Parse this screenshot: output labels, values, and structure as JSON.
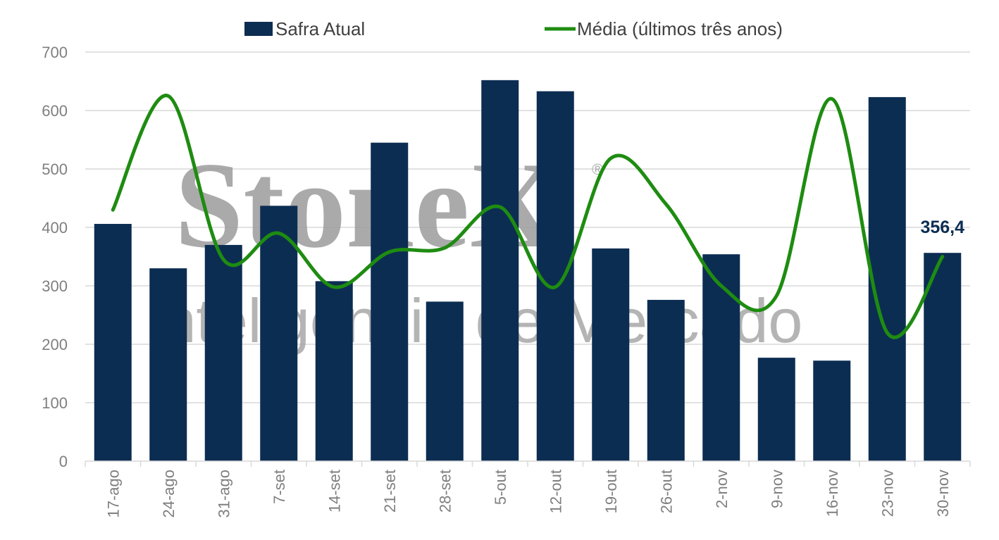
{
  "watermark": {
    "brand": "StoneX",
    "registered": "®",
    "tagline": "Inteligência de Mercado"
  },
  "colors": {
    "bar": "#0c2d52",
    "line": "#1e8c11",
    "grid": "#d9d9d9",
    "axis_text": "#7f7f7f"
  },
  "chart_data": {
    "type": "bar",
    "categories": [
      "17-ago",
      "24-ago",
      "31-ago",
      "7-set",
      "14-set",
      "21-set",
      "28-set",
      "5-out",
      "12-out",
      "19-out",
      "26-out",
      "2-nov",
      "9-nov",
      "16-nov",
      "23-nov",
      "30-nov"
    ],
    "series": [
      {
        "name": "Safra Atual",
        "type": "bar",
        "values": [
          406,
          330,
          370,
          437,
          308,
          545,
          273,
          652,
          633,
          364,
          276,
          354,
          177,
          172,
          623,
          356.4
        ]
      },
      {
        "name": "Média (últimos três anos)",
        "type": "line",
        "values": [
          430,
          625,
          345,
          390,
          298,
          358,
          365,
          435,
          298,
          518,
          440,
          300,
          283,
          620,
          220,
          350
        ]
      }
    ],
    "annotations": [
      {
        "category": "30-nov",
        "text": "356,4"
      }
    ],
    "ylim": [
      0,
      700
    ],
    "yticks": [
      0,
      100,
      200,
      300,
      400,
      500,
      600,
      700
    ],
    "grid": true,
    "legend_position": "top"
  }
}
